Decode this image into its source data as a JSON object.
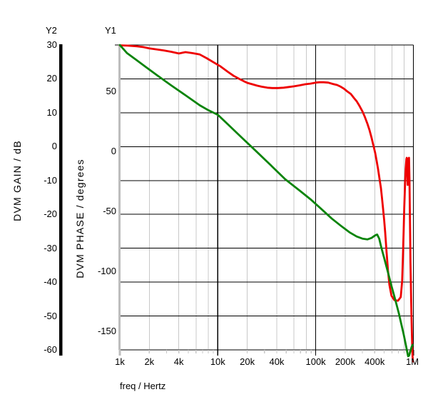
{
  "figure": {
    "background": "#ffffff",
    "grid_minor_color": "#c8c8c8",
    "grid_major_color": "#000000",
    "y1_axis_line_color": "#bdbdbd",
    "y2_axis_line_color": "#000000"
  },
  "chart_data": {
    "type": "line",
    "title": "",
    "xlabel": "freq / Hertz",
    "x_scale": "log",
    "x_range": [
      1000,
      1000000
    ],
    "grid": "on",
    "legend": "none",
    "axes": {
      "y2": {
        "name": "Y2",
        "title": "DVM GAIN / dB",
        "ticks": [
          30,
          20,
          10,
          0,
          -10,
          -20,
          -30,
          -40,
          -50,
          -60
        ],
        "range": [
          -60,
          30
        ]
      },
      "y1": {
        "name": "Y1",
        "title": "DVM PHASE / degrees",
        "ticks": [
          50,
          0,
          -50,
          -100,
          -150
        ],
        "range": [
          -172,
          88
        ]
      },
      "x": {
        "labels": [
          {
            "text": "1k",
            "value": 1000
          },
          {
            "text": "2k",
            "value": 2000
          },
          {
            "text": "4k",
            "value": 4000
          },
          {
            "text": "10k",
            "value": 10000
          },
          {
            "text": "20k",
            "value": 20000
          },
          {
            "text": "40k",
            "value": 40000
          },
          {
            "text": "100k",
            "value": 100000
          },
          {
            "text": "200k",
            "value": 200000
          },
          {
            "text": "400k",
            "value": 400000
          },
          {
            "text": "1M",
            "value": 1000000
          }
        ],
        "minor_gridline_multiples": [
          2,
          4,
          6,
          8
        ],
        "minor_tick_multiples": [
          2,
          3,
          4,
          5,
          6,
          7,
          8,
          9
        ]
      }
    },
    "series": [
      {
        "name": "gain",
        "axis": "y2",
        "unit": "dB",
        "color": "#ee0000",
        "points": [
          [
            1000,
            29.9
          ],
          [
            1200,
            29.8
          ],
          [
            1500,
            29.6
          ],
          [
            1710,
            29.4
          ],
          [
            2000,
            29.0
          ],
          [
            2390,
            28.7
          ],
          [
            2800,
            28.4
          ],
          [
            3340,
            28.0
          ],
          [
            4000,
            27.5
          ],
          [
            4680,
            27.9
          ],
          [
            5500,
            27.6
          ],
          [
            6550,
            27.2
          ],
          [
            7700,
            26.1
          ],
          [
            9160,
            24.8
          ],
          [
            10500,
            23.8
          ],
          [
            12800,
            22.0
          ],
          [
            14500,
            20.9
          ],
          [
            16500,
            20.0
          ],
          [
            18500,
            19.3
          ],
          [
            20100,
            18.8
          ],
          [
            22500,
            18.4
          ],
          [
            25100,
            18.0
          ],
          [
            28000,
            17.7
          ],
          [
            32100,
            17.4
          ],
          [
            36000,
            17.3
          ],
          [
            41200,
            17.3
          ],
          [
            47000,
            17.4
          ],
          [
            53300,
            17.6
          ],
          [
            60000,
            17.8
          ],
          [
            68700,
            18.1
          ],
          [
            78000,
            18.4
          ],
          [
            88500,
            18.6
          ],
          [
            100000,
            18.9
          ],
          [
            109000,
            19.0
          ],
          [
            120000,
            19.0
          ],
          [
            134000,
            18.9
          ],
          [
            150000,
            18.5
          ],
          [
            165000,
            18.2
          ],
          [
            180000,
            17.7
          ],
          [
            194000,
            17.1
          ],
          [
            210000,
            16.3
          ],
          [
            229000,
            15.5
          ],
          [
            245000,
            14.4
          ],
          [
            262000,
            13.4
          ],
          [
            280000,
            12.0
          ],
          [
            300000,
            10.4
          ],
          [
            318000,
            8.7
          ],
          [
            337000,
            6.8
          ],
          [
            355000,
            4.8
          ],
          [
            372000,
            2.6
          ],
          [
            388000,
            0.4
          ],
          [
            404000,
            -1.8
          ],
          [
            418000,
            -4.1
          ],
          [
            432000,
            -6.5
          ],
          [
            447000,
            -9.3
          ],
          [
            463000,
            -12.2
          ],
          [
            475000,
            -15.2
          ],
          [
            487000,
            -18.3
          ],
          [
            500000,
            -21.8
          ],
          [
            512000,
            -25.4
          ],
          [
            529000,
            -31.1
          ],
          [
            547000,
            -36.6
          ],
          [
            565000,
            -40.8
          ],
          [
            594000,
            -44.0
          ],
          [
            635000,
            -45.3
          ],
          [
            692000,
            -45.5
          ],
          [
            738000,
            -44.4
          ],
          [
            763000,
            -39.6
          ],
          [
            776000,
            -32.8
          ],
          [
            789000,
            -25.4
          ],
          [
            802000,
            -18.1
          ],
          [
            816000,
            -11.3
          ],
          [
            829000,
            -6.5
          ],
          [
            843000,
            -3.7
          ],
          [
            850000,
            -3.3
          ],
          [
            857000,
            -5.8
          ],
          [
            868000,
            -11.3
          ],
          [
            878000,
            -7.1
          ],
          [
            884000,
            -3.7
          ],
          [
            896000,
            -3.3
          ],
          [
            906000,
            -9.2
          ],
          [
            913000,
            -18.1
          ],
          [
            921000,
            -26.5
          ],
          [
            928000,
            -33.9
          ],
          [
            935000,
            -39.5
          ],
          [
            942000,
            -44.4
          ],
          [
            950000,
            -49.7
          ],
          [
            958000,
            -54.3
          ],
          [
            966000,
            -58.5
          ],
          [
            974000,
            -61.7
          ],
          [
            982000,
            -63.4
          ]
        ]
      },
      {
        "name": "phase",
        "axis": "y1",
        "unit": "degrees",
        "color": "#0a840a",
        "points": [
          [
            1000,
            88.4
          ],
          [
            1180,
            81.8
          ],
          [
            1450,
            76.4
          ],
          [
            1860,
            69.9
          ],
          [
            2390,
            63.3
          ],
          [
            3340,
            54.9
          ],
          [
            4680,
            46.6
          ],
          [
            6550,
            38.2
          ],
          [
            8000,
            34.2
          ],
          [
            10000,
            30.4
          ],
          [
            12800,
            22.1
          ],
          [
            17900,
            10.7
          ],
          [
            25100,
            -0.6
          ],
          [
            35000,
            -11.9
          ],
          [
            48800,
            -23.3
          ],
          [
            68700,
            -32.8
          ],
          [
            88500,
            -40.0
          ],
          [
            113000,
            -47.8
          ],
          [
            146000,
            -56.1
          ],
          [
            181000,
            -62.1
          ],
          [
            221000,
            -67.5
          ],
          [
            262000,
            -71.0
          ],
          [
            300000,
            -72.8
          ],
          [
            337000,
            -73.4
          ],
          [
            372000,
            -72.2
          ],
          [
            404000,
            -70.1
          ],
          [
            424000,
            -69.3
          ],
          [
            445000,
            -72.8
          ],
          [
            467000,
            -80.0
          ],
          [
            500000,
            -89.0
          ],
          [
            547000,
            -100.9
          ],
          [
            594000,
            -112.2
          ],
          [
            649000,
            -123.6
          ],
          [
            705000,
            -134.9
          ],
          [
            751000,
            -144.5
          ],
          [
            789000,
            -152.2
          ],
          [
            829000,
            -160.6
          ],
          [
            857000,
            -166.6
          ],
          [
            878000,
            -170.7
          ],
          [
            899000,
            -170.1
          ],
          [
            926000,
            -166.6
          ],
          [
            953000,
            -163.0
          ],
          [
            974000,
            -161.2
          ]
        ]
      }
    ]
  }
}
